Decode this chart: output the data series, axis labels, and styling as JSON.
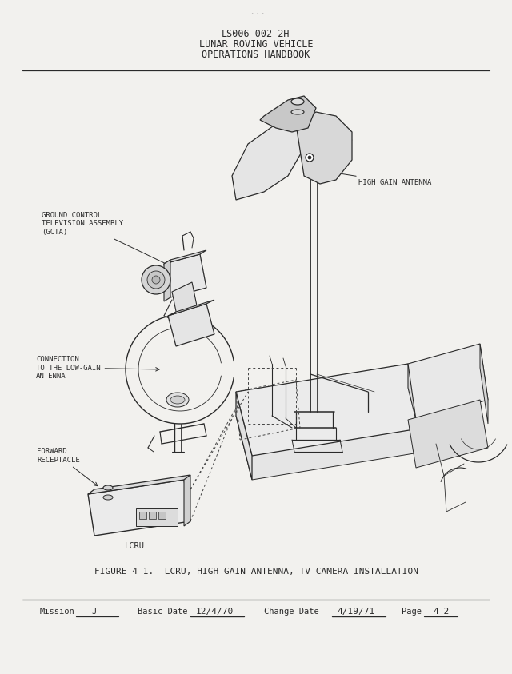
{
  "bg_color": "#f2f1ee",
  "header_line1": "LS006-002-2H",
  "header_line2": "LUNAR ROVING VEHICLE",
  "header_line3": "OPERATIONS HANDBOOK",
  "figure_caption": "FIGURE 4-1.  LCRU, HIGH GAIN ANTENNA, TV CAMERA INSTALLATION",
  "footer_mission_label": "Mission",
  "footer_mission_value": "J",
  "footer_basic_date_label": "Basic Date",
  "footer_basic_date_value": "12/4/70",
  "footer_change_date_label": "Change Date",
  "footer_change_date_value": "4/19/71",
  "footer_page_label": "Page",
  "footer_page_value": "4-2",
  "label_hga": "HIGH GAIN ANTENNA",
  "label_gcta": "GROUND CONTROL\nTELEVISION ASSEMBLY\n(GCTA)",
  "label_conn": "CONNECTION\nTO THE LOW-GAIN\nANTENNA",
  "label_fwd": "FORWARD\nRECEPTACLE",
  "label_lcru": "LCRU",
  "text_color": "#2a2a2a",
  "line_color": "#2a2a2a",
  "header_fontsize": 8.5,
  "caption_fontsize": 8,
  "footer_fontsize": 7.5,
  "label_fontsize": 6.5
}
